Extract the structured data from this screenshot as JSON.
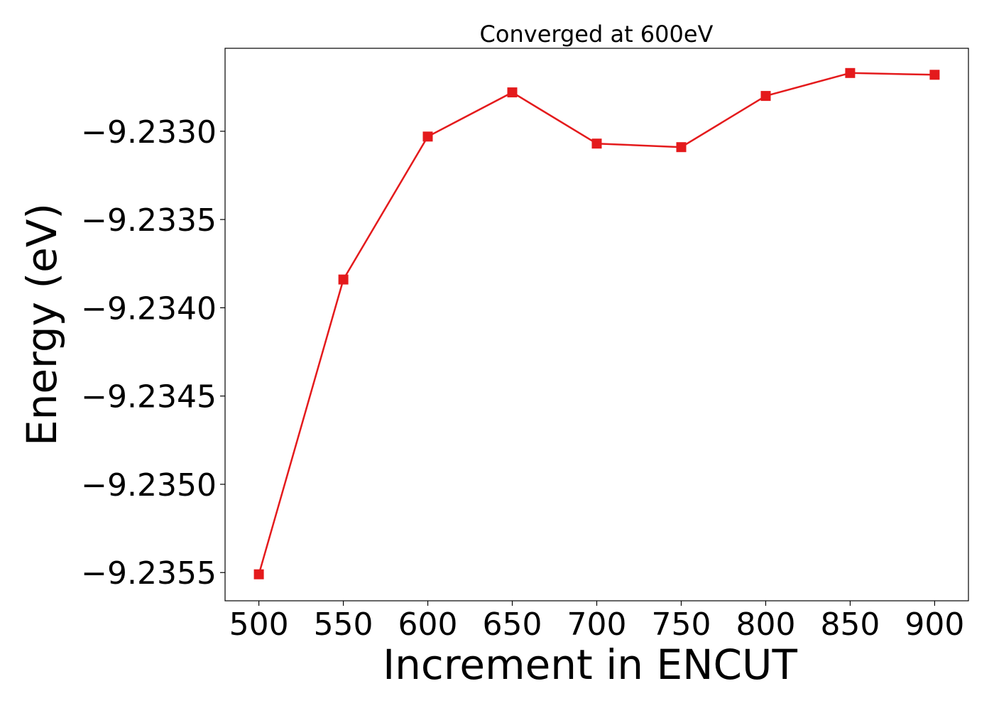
{
  "chart_data": {
    "type": "line",
    "title": "Converged at 600eV",
    "xlabel": "Increment in ENCUT",
    "ylabel": "Energy (eV)",
    "x": [
      500,
      550,
      600,
      650,
      700,
      750,
      800,
      850,
      900
    ],
    "series": [
      {
        "values": [
          -9.23551,
          -9.23384,
          -9.23303,
          -9.23278,
          -9.23307,
          -9.23309,
          -9.2328,
          -9.23267,
          -9.23268
        ],
        "color": "#e41a1c",
        "marker": "square"
      }
    ],
    "xticks": [
      500,
      550,
      600,
      650,
      700,
      750,
      800,
      850,
      900
    ],
    "yticks": [
      -9.2355,
      -9.235,
      -9.2345,
      -9.234,
      -9.2335,
      -9.233
    ],
    "ytick_labels": [
      "−9.2355",
      "−9.2350",
      "−9.2345",
      "−9.2340",
      "−9.2335",
      "−9.2330"
    ],
    "xlim": [
      480,
      920
    ],
    "ylim": [
      -9.23566,
      -9.23253
    ],
    "grid": false,
    "legend": "none"
  }
}
